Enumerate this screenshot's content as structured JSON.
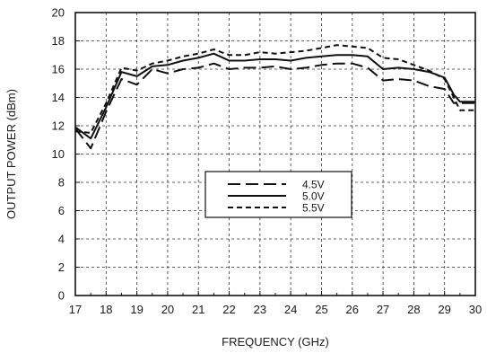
{
  "chart_data": {
    "type": "line",
    "xlabel": "FREQUENCY (GHz)",
    "ylabel": "OUTPUT POWER (dBm)",
    "xlim": [
      17,
      30
    ],
    "ylim": [
      0,
      20
    ],
    "x_ticks": [
      "17",
      "18",
      "19",
      "20",
      "21",
      "22",
      "23",
      "24",
      "25",
      "26",
      "27",
      "28",
      "29",
      "30"
    ],
    "y_ticks": [
      "0",
      "2",
      "4",
      "6",
      "8",
      "10",
      "12",
      "14",
      "16",
      "18",
      "20"
    ],
    "grid": true,
    "legend_position": "center",
    "series": [
      {
        "name": "4.5V",
        "line_style": "long-dash",
        "color": "#111111",
        "x": [
          17,
          17.5,
          18,
          18.5,
          19,
          19.5,
          20,
          20.5,
          21,
          21.5,
          22,
          22.5,
          23,
          23.5,
          24,
          24.5,
          25,
          25.5,
          26,
          26.5,
          27,
          27.5,
          28,
          28.5,
          29,
          29.3,
          29.5,
          30
        ],
        "y": [
          11.8,
          10.4,
          13.0,
          15.3,
          14.9,
          16.0,
          15.7,
          16.0,
          16.1,
          16.4,
          16.0,
          16.1,
          16.1,
          16.2,
          16.0,
          16.1,
          16.3,
          16.4,
          16.4,
          16.1,
          15.2,
          15.3,
          15.2,
          14.8,
          14.6,
          13.6,
          13.6,
          13.6
        ]
      },
      {
        "name": "5.0V",
        "line_style": "solid",
        "color": "#111111",
        "x": [
          17,
          17.5,
          18,
          18.5,
          19,
          19.5,
          20,
          20.5,
          21,
          21.5,
          22,
          22.5,
          23,
          23.5,
          24,
          24.5,
          25,
          25.5,
          26,
          26.5,
          27,
          27.5,
          28,
          28.5,
          29,
          29.3,
          29.5,
          30
        ],
        "y": [
          11.9,
          11.1,
          13.3,
          15.8,
          15.5,
          16.2,
          16.3,
          16.6,
          16.8,
          17.1,
          16.6,
          16.6,
          16.7,
          16.7,
          16.6,
          16.8,
          16.9,
          17.0,
          17.0,
          16.9,
          16.0,
          16.1,
          16.0,
          15.8,
          15.4,
          14.2,
          13.7,
          13.7
        ]
      },
      {
        "name": "5.5V",
        "line_style": "short-dash",
        "color": "#111111",
        "x": [
          17,
          17.5,
          18,
          18.5,
          19,
          19.5,
          20,
          20.5,
          21,
          21.5,
          22,
          22.5,
          23,
          23.5,
          24,
          24.5,
          25,
          25.5,
          26,
          26.5,
          27,
          27.5,
          28,
          28.5,
          29,
          29.3,
          29.5,
          30
        ],
        "y": [
          11.6,
          11.5,
          13.6,
          16.1,
          15.9,
          16.4,
          16.6,
          16.9,
          17.1,
          17.4,
          17.0,
          17.0,
          17.2,
          17.1,
          17.2,
          17.3,
          17.5,
          17.7,
          17.6,
          17.5,
          16.8,
          16.7,
          16.3,
          15.9,
          15.3,
          14.0,
          13.1,
          13.1
        ]
      }
    ]
  }
}
